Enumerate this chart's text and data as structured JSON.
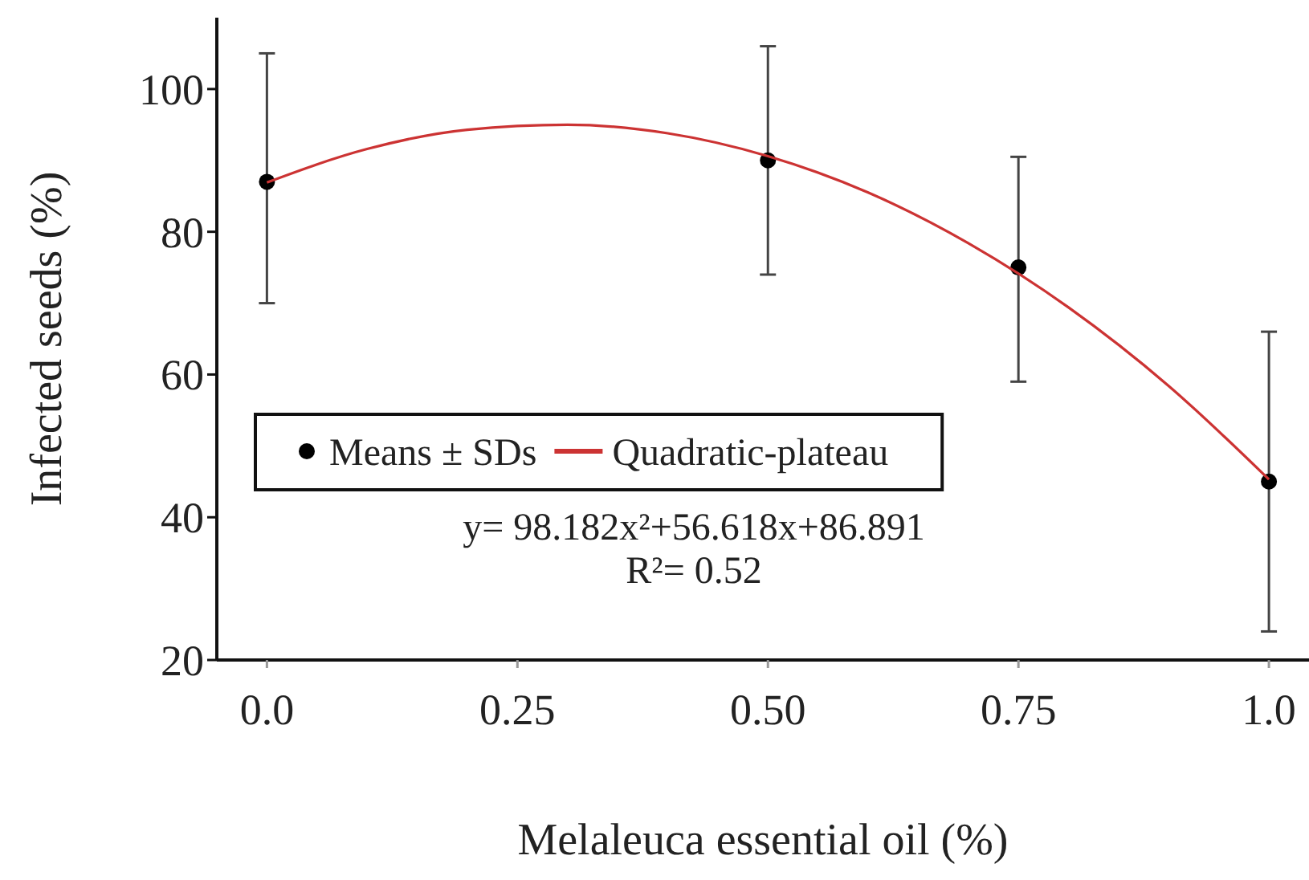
{
  "chart_data": {
    "type": "scatter",
    "xlabel": "Melaleuca essential oil (%)",
    "ylabel": "Infected seeds (%)",
    "xlim": [
      -0.05,
      1.04
    ],
    "xticks": [
      {
        "value": 0,
        "label": "0.0"
      },
      0.25,
      {
        "value": 0.5,
        "label": "0.50"
      },
      0.75,
      {
        "value": 1,
        "label": "1.0"
      }
    ],
    "ylim": [
      20,
      110
    ],
    "yticks": [
      20,
      40,
      60,
      80,
      100
    ],
    "grid": false,
    "legend": "left",
    "marker": "circle",
    "series": [
      {
        "name": "Means ± SDs",
        "color": "#000000",
        "x": [
          0,
          0.5,
          0.75,
          1
        ],
        "values": [
          87,
          90,
          75,
          45
        ],
        "errors": [
          [
            70,
            105
          ],
          [
            74,
            106
          ],
          [
            59,
            90.5
          ],
          [
            24,
            66
          ]
        ]
      },
      {
        "name": "Quadratic-plateau",
        "type": "line",
        "color": "#cc3333",
        "marker": "none",
        "line_style": "solid",
        "x": [
          0,
          0.1,
          0.2,
          0.3,
          0.4,
          0.5,
          0.6,
          0.7,
          0.8,
          0.9,
          1
        ],
        "values": [
          86.9,
          91.6,
          94.3,
          95,
          93.8,
          90.6,
          85.5,
          78.4,
          69.4,
          58.4,
          45.3
        ]
      }
    ],
    "annotations": [
      "y= 98.182x²+56.618x+86.891",
      "R²= 0.52"
    ]
  }
}
